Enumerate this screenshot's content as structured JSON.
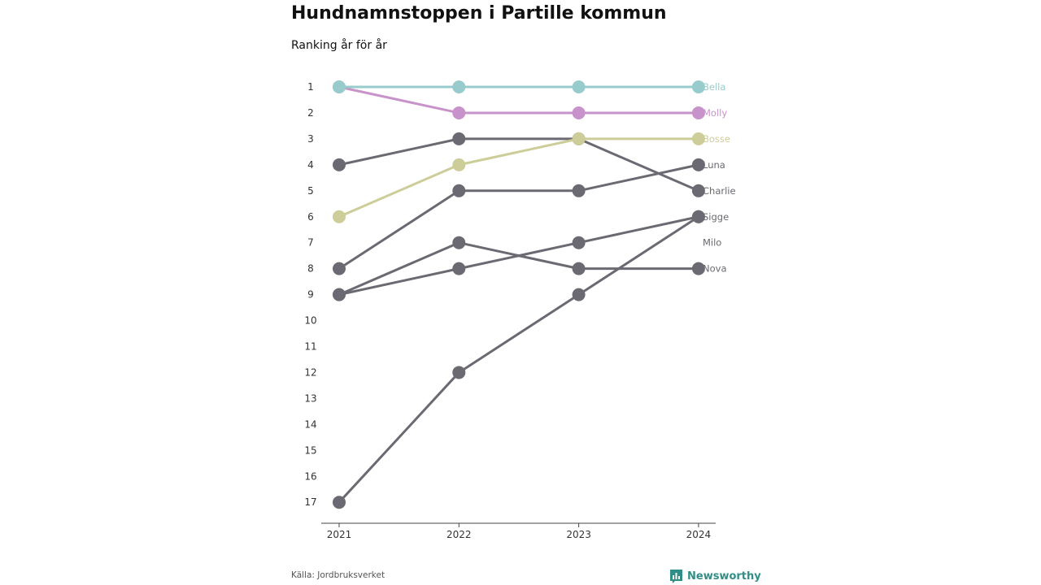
{
  "title": "Hundnamnstoppen i Partille kommun",
  "subtitle": "Ranking år för år",
  "source": "Källa: Jordbruksverket",
  "brand": "Newsworthy",
  "colors": {
    "bella": "#98cccc",
    "molly": "#c893cb",
    "bosse": "#cdcd9a",
    "default": "#6b6a72",
    "brand": "#2f8f87"
  },
  "chart_data": {
    "type": "line",
    "x": [
      "2021",
      "2022",
      "2023",
      "2024"
    ],
    "y_ticks": [
      "1",
      "2",
      "3",
      "4",
      "5",
      "6",
      "7",
      "8",
      "9",
      "10",
      "11",
      "12",
      "13",
      "14",
      "15",
      "16",
      "17"
    ],
    "ylim": [
      1,
      17
    ],
    "y_inverted": true,
    "series": [
      {
        "name": "Nova",
        "values": [
          9,
          7,
          8,
          8
        ],
        "color": "default"
      },
      {
        "name": "Milo",
        "values": [
          17,
          12,
          9,
          6
        ],
        "color": "default"
      },
      {
        "name": "Sigge",
        "values": [
          9,
          8,
          7,
          6
        ],
        "color": "default"
      },
      {
        "name": "Charlie",
        "values": [
          4,
          3,
          3,
          5
        ],
        "color": "default"
      },
      {
        "name": "Luna",
        "values": [
          8,
          5,
          5,
          4
        ],
        "color": "default"
      },
      {
        "name": "Bosse",
        "values": [
          6,
          4,
          3,
          3
        ],
        "color": "bosse"
      },
      {
        "name": "Molly",
        "values": [
          1,
          2,
          2,
          2
        ],
        "color": "molly"
      },
      {
        "name": "Bella",
        "values": [
          1,
          1,
          1,
          1
        ],
        "color": "bella"
      }
    ],
    "end_labels": [
      {
        "text": "Bella",
        "rank": 1,
        "color": "bella"
      },
      {
        "text": "Molly",
        "rank": 2,
        "color": "molly"
      },
      {
        "text": "Bosse",
        "rank": 3,
        "color": "bosse"
      },
      {
        "text": "Luna",
        "rank": 4,
        "color": "default"
      },
      {
        "text": "Charlie",
        "rank": 5,
        "color": "default"
      },
      {
        "text": "Sigge",
        "rank": 6,
        "color": "default"
      },
      {
        "text": "Milo",
        "rank": 7,
        "color": "default"
      },
      {
        "text": "Nova",
        "rank": 8,
        "color": "default"
      }
    ]
  }
}
